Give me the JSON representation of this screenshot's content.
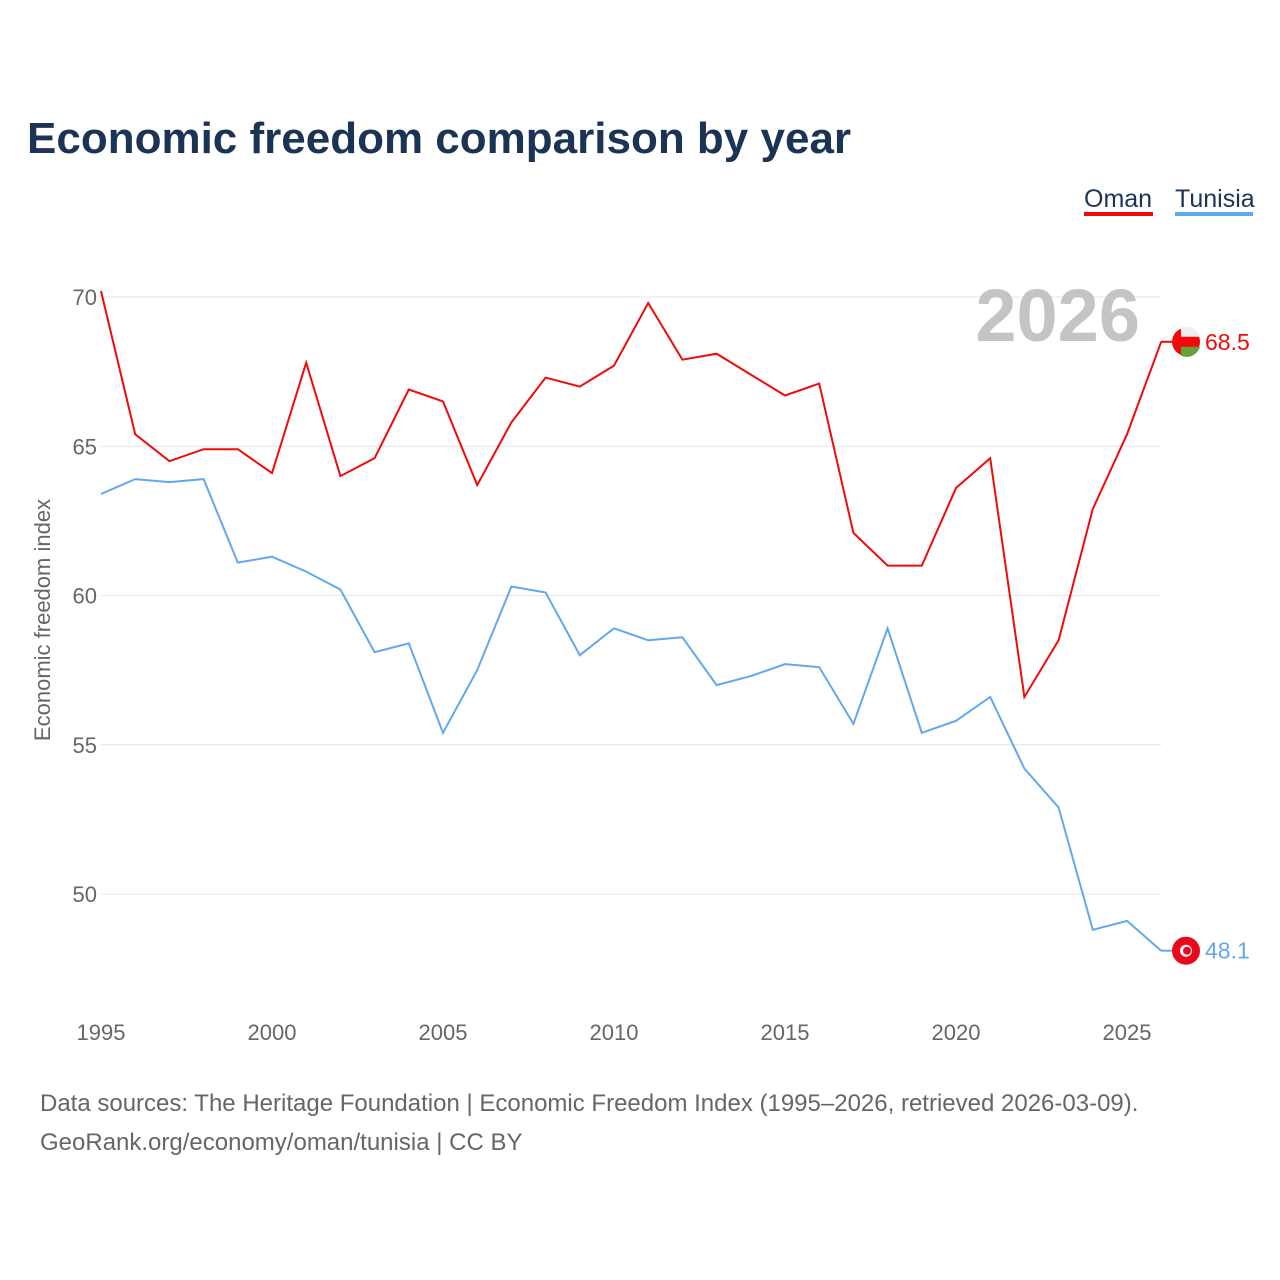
{
  "chart_data": {
    "type": "line",
    "title": "Economic freedom comparison by year",
    "ylabel": "Economic freedom index",
    "xlabel": "",
    "ylim": [
      46.5,
      70.5
    ],
    "xlim": [
      1995,
      2026
    ],
    "yticks": [
      50,
      55,
      60,
      65,
      70
    ],
    "xticks": [
      1995,
      2000,
      2005,
      2010,
      2015,
      2020,
      2025
    ],
    "grid": true,
    "legend_position": "top-right",
    "year_watermark": "2026",
    "x": [
      1995,
      1996,
      1997,
      1998,
      1999,
      2000,
      2001,
      2002,
      2003,
      2004,
      2005,
      2006,
      2007,
      2008,
      2009,
      2010,
      2011,
      2012,
      2013,
      2014,
      2015,
      2016,
      2017,
      2018,
      2019,
      2020,
      2021,
      2022,
      2023,
      2024,
      2025,
      2026
    ],
    "series": [
      {
        "name": "Oman",
        "color": "#f00a0a",
        "end_label": "68.5",
        "values": [
          70.2,
          65.4,
          64.5,
          64.9,
          64.9,
          64.1,
          67.8,
          64.0,
          64.6,
          66.9,
          66.5,
          63.7,
          65.8,
          67.3,
          67.0,
          67.7,
          69.8,
          67.9,
          68.1,
          67.4,
          66.7,
          67.1,
          62.1,
          61.0,
          61.0,
          63.6,
          64.6,
          56.6,
          58.5,
          62.9,
          65.4,
          68.5
        ]
      },
      {
        "name": "Tunisia",
        "color": "#62a8ec",
        "end_label": "48.1",
        "values": [
          63.4,
          63.9,
          63.8,
          63.9,
          61.1,
          61.3,
          60.8,
          60.2,
          58.1,
          58.4,
          55.4,
          57.5,
          60.3,
          60.1,
          58.0,
          58.9,
          58.5,
          58.6,
          57.0,
          57.3,
          57.7,
          57.6,
          55.7,
          58.9,
          55.4,
          55.8,
          56.6,
          54.2,
          52.9,
          48.8,
          49.1,
          48.1
        ]
      }
    ]
  },
  "footer": {
    "line1": "Data sources: The Heritage Foundation | Economic Freedom Index (1995–2026, retrieved 2026-03-09).",
    "line2": "GeoRank.org/economy/oman/tunisia | CC BY"
  }
}
